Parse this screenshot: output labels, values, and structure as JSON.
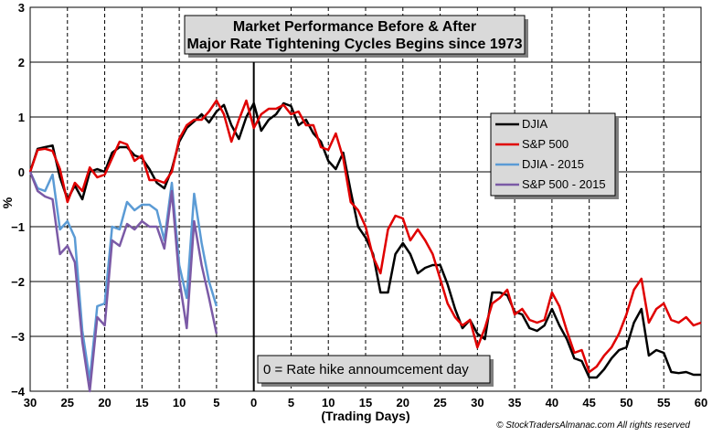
{
  "chart_data": {
    "type": "line",
    "title": [
      "Market Performance Before & After",
      "Major Rate Tightening Cycles Begins since 1973"
    ],
    "xlabel": "(Trading Days)",
    "ylabel": "%",
    "xlim": [
      -30,
      60
    ],
    "ylim": [
      -4,
      3
    ],
    "x_tick_values": [
      -30,
      -25,
      -20,
      -15,
      -10,
      -5,
      0,
      5,
      10,
      15,
      20,
      25,
      30,
      35,
      40,
      45,
      50,
      55,
      60
    ],
    "x_tick_labels": [
      "30",
      "25",
      "20",
      "15",
      "10",
      "5",
      "0",
      "5",
      "10",
      "15",
      "20",
      "25",
      "30",
      "35",
      "40",
      "45",
      "50",
      "55",
      "60"
    ],
    "y_tick_values": [
      -4,
      -3,
      -2,
      -1,
      0,
      1,
      2,
      3
    ],
    "y_tick_labels": [
      "−4",
      "−3",
      "−2",
      "−1",
      "0",
      "1",
      "2",
      "3"
    ],
    "grid": {
      "x": true,
      "y": true,
      "x_style": "dashed",
      "y_style": "solid"
    },
    "zero_line_x": 0,
    "legend": {
      "position": "right",
      "entries": [
        "DJIA",
        "S&P 500",
        "DJIA - 2015",
        "S&P 500 - 2015"
      ]
    },
    "annotation": "0 = Rate hike annoumcement  day",
    "copyright": "© StockTradersAlmanac.com All rights reserved",
    "series": [
      {
        "name": "DJIA",
        "color": "#000000",
        "x": [
          -30,
          -29,
          -28,
          -27,
          -26,
          -25,
          -24,
          -23,
          -22,
          -21,
          -20,
          -19,
          -18,
          -17,
          -16,
          -15,
          -14,
          -13,
          -12,
          -11,
          -10,
          -9,
          -8,
          -7,
          -6,
          -5,
          -4,
          -3,
          -2,
          -1,
          0,
          1,
          2,
          3,
          4,
          5,
          6,
          7,
          8,
          9,
          10,
          11,
          12,
          13,
          14,
          15,
          16,
          17,
          18,
          19,
          20,
          21,
          22,
          23,
          24,
          25,
          26,
          27,
          28,
          29,
          30,
          31,
          32,
          33,
          34,
          35,
          36,
          37,
          38,
          39,
          40,
          41,
          42,
          43,
          44,
          45,
          46,
          47,
          48,
          49,
          50,
          51,
          52,
          53,
          54,
          55,
          56,
          57,
          58,
          59,
          60
        ],
        "y": [
          0,
          0.42,
          0.45,
          0.48,
          -0.1,
          -0.5,
          -0.25,
          -0.5,
          0,
          0.05,
          0,
          0.35,
          0.45,
          0.45,
          0.3,
          0.25,
          0.05,
          -0.2,
          -0.3,
          0.05,
          0.55,
          0.8,
          0.92,
          1.05,
          0.9,
          1.1,
          1.22,
          0.85,
          0.6,
          1,
          1.25,
          0.75,
          0.95,
          1.05,
          1.25,
          1.2,
          0.85,
          0.95,
          0.7,
          0.55,
          0.2,
          0.05,
          0.35,
          -0.35,
          -1,
          -1.2,
          -1.5,
          -2.2,
          -2.2,
          -1.5,
          -1.3,
          -1.5,
          -1.85,
          -1.75,
          -1.7,
          -1.7,
          -2.05,
          -2.5,
          -2.85,
          -2.7,
          -2.95,
          -3.05,
          -2.2,
          -2.2,
          -2.25,
          -2.55,
          -2.6,
          -2.85,
          -2.9,
          -2.8,
          -2.5,
          -2.8,
          -3.05,
          -3.4,
          -3.45,
          -3.75,
          -3.75,
          -3.6,
          -3.4,
          -3.25,
          -3.2,
          -2.75,
          -2.5,
          -3.35,
          -3.25,
          -3.3,
          -3.65,
          -3.67,
          -3.65,
          -3.7,
          -3.7
        ]
      },
      {
        "name": "S&P 500",
        "color": "#e00000",
        "x": [
          -30,
          -29,
          -28,
          -27,
          -26,
          -25,
          -24,
          -23,
          -22,
          -21,
          -20,
          -19,
          -18,
          -17,
          -16,
          -15,
          -14,
          -13,
          -12,
          -11,
          -10,
          -9,
          -8,
          -7,
          -6,
          -5,
          -4,
          -3,
          -2,
          -1,
          0,
          1,
          2,
          3,
          4,
          5,
          6,
          7,
          8,
          9,
          10,
          11,
          12,
          13,
          14,
          15,
          16,
          17,
          18,
          19,
          20,
          21,
          22,
          23,
          24,
          25,
          26,
          27,
          28,
          29,
          30,
          31,
          32,
          33,
          34,
          35,
          36,
          37,
          38,
          39,
          40,
          41,
          42,
          43,
          44,
          45,
          46,
          47,
          48,
          49,
          50,
          51,
          52,
          53,
          54,
          55,
          56,
          57,
          58,
          59,
          60
        ],
        "y": [
          0,
          0.4,
          0.42,
          0.38,
          0.05,
          -0.55,
          -0.2,
          -0.35,
          0.08,
          -0.1,
          -0.05,
          0.25,
          0.55,
          0.5,
          0.2,
          0.3,
          -0.15,
          -0.15,
          -0.2,
          0,
          0.6,
          0.85,
          0.95,
          0.95,
          1.1,
          1.3,
          1.05,
          0.55,
          0.95,
          1.3,
          0.8,
          1.05,
          1.15,
          1.15,
          1.22,
          1.05,
          1.1,
          0.85,
          0.85,
          0.45,
          0.4,
          0.7,
          0.25,
          -0.55,
          -0.7,
          -1,
          -1.55,
          -1.85,
          -1.05,
          -0.8,
          -0.85,
          -1.25,
          -1.05,
          -1.25,
          -1.5,
          -1.95,
          -2.4,
          -2.65,
          -2.8,
          -2.7,
          -3.2,
          -2.85,
          -2.4,
          -2.3,
          -2.15,
          -2.6,
          -2.5,
          -2.7,
          -2.75,
          -2.7,
          -2.2,
          -2.45,
          -2.9,
          -3.3,
          -3.25,
          -3.65,
          -3.55,
          -3.35,
          -3.2,
          -2.95,
          -2.6,
          -2.15,
          -1.95,
          -2.75,
          -2.5,
          -2.4,
          -2.7,
          -2.75,
          -2.65,
          -2.8,
          -2.75
        ]
      },
      {
        "name": "DJIA - 2015",
        "color": "#5b9bd5",
        "x": [
          -30,
          -29,
          -28,
          -27,
          -26,
          -25,
          -24,
          -23,
          -22,
          -21,
          -20,
          -19,
          -18,
          -17,
          -16,
          -15,
          -14,
          -13,
          -12,
          -11,
          -10,
          -9,
          -8,
          -7,
          -6,
          -5
        ],
        "y": [
          0,
          -0.3,
          -0.35,
          -0.05,
          -1.05,
          -0.9,
          -1.2,
          -2.9,
          -3.8,
          -2.45,
          -2.4,
          -1,
          -1.05,
          -0.55,
          -0.7,
          -0.6,
          -0.6,
          -0.7,
          -1.25,
          -0.2,
          -1.7,
          -2.3,
          -0.4,
          -1.3,
          -2,
          -2.45
        ]
      },
      {
        "name": "S&P 500 - 2015",
        "color": "#7b5aa6",
        "x": [
          -30,
          -29,
          -28,
          -27,
          -26,
          -25,
          -24,
          -23,
          -22,
          -21,
          -20,
          -19,
          -18,
          -17,
          -16,
          -15,
          -14,
          -13,
          -12,
          -11,
          -10,
          -9,
          -8,
          -7,
          -6,
          -5
        ],
        "y": [
          0,
          -0.35,
          -0.45,
          -0.5,
          -1.5,
          -1.35,
          -1.65,
          -3.1,
          -4,
          -2.65,
          -2.8,
          -1.25,
          -1.35,
          -0.95,
          -1.05,
          -0.9,
          -1,
          -1,
          -1.4,
          -0.35,
          -1.95,
          -2.85,
          -0.9,
          -1.7,
          -2.3,
          -2.95
        ]
      }
    ]
  }
}
